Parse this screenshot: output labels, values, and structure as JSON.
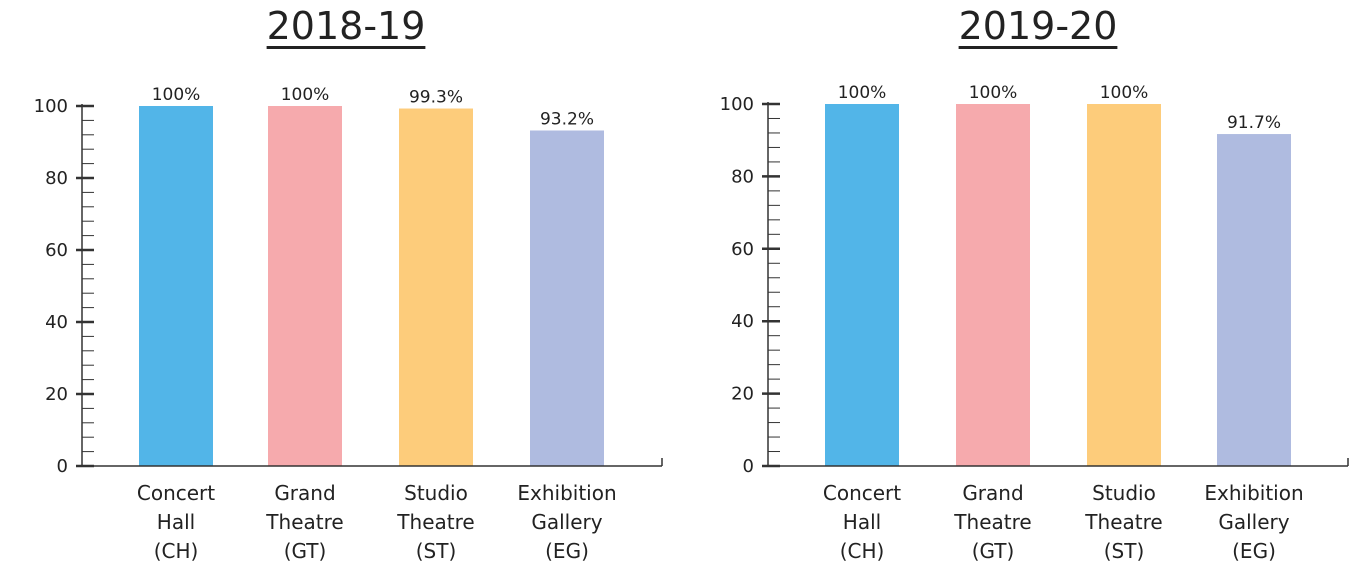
{
  "colors": {
    "concert_hall": "#52b5e8",
    "grand_theatre": "#f6aaad",
    "studio_theatre": "#fdcc7b",
    "exhibition_gallery": "#afbbe0",
    "axis": "#333333"
  },
  "chart_data": [
    {
      "type": "bar",
      "title": "2018-19",
      "categories": [
        [
          "Concert",
          "Hall",
          "(CH)"
        ],
        [
          "Grand",
          "Theatre",
          "(GT)"
        ],
        [
          "Studio",
          "Theatre",
          "(ST)"
        ],
        [
          "Exhibition",
          "Gallery",
          "(EG)"
        ]
      ],
      "values": [
        100,
        100,
        99.3,
        93.2
      ],
      "value_labels": [
        "100%",
        "100%",
        "99.3%",
        "93.2%"
      ],
      "ylim": [
        0,
        100
      ],
      "yticks": [
        0,
        20,
        40,
        60,
        80,
        100
      ],
      "xlabel": "",
      "ylabel": "",
      "grid": false
    },
    {
      "type": "bar",
      "title": "2019-20",
      "categories": [
        [
          "Concert",
          "Hall",
          "(CH)"
        ],
        [
          "Grand",
          "Theatre",
          "(GT)"
        ],
        [
          "Studio",
          "Theatre",
          "(ST)"
        ],
        [
          "Exhibition",
          "Gallery",
          "(EG)"
        ]
      ],
      "values": [
        100,
        100,
        100,
        91.7
      ],
      "value_labels": [
        "100%",
        "100%",
        "100%",
        "91.7%"
      ],
      "ylim": [
        0,
        100
      ],
      "yticks": [
        0,
        20,
        40,
        60,
        80,
        100
      ],
      "xlabel": "",
      "ylabel": "",
      "grid": false
    }
  ]
}
